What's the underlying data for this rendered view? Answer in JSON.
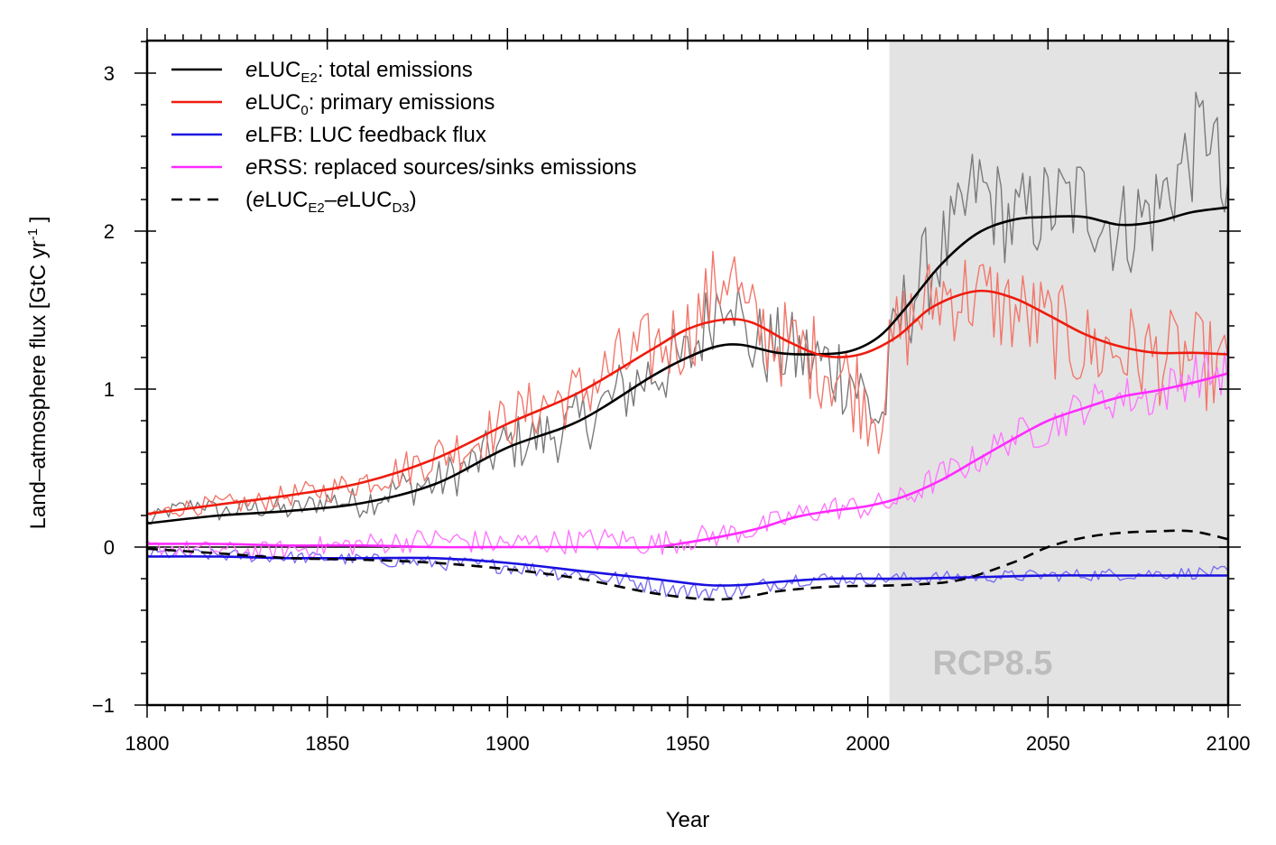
{
  "chart_data": {
    "type": "line",
    "xlabel": "Year",
    "ylabel": "Land–atmosphere flux [GtC yr",
    "ylabel_sup": "-1",
    "ylabel_end": " ]",
    "xlim": [
      1800,
      2100
    ],
    "ylim": [
      -1,
      3.2
    ],
    "x_ticks": [
      1800,
      1850,
      1900,
      1950,
      2000,
      2050,
      2100
    ],
    "x_tick_labels": [
      "1800",
      "1850",
      "1900",
      "1950",
      "2000",
      "2050",
      "2100"
    ],
    "y_ticks": [
      -1,
      0,
      1,
      2,
      3
    ],
    "y_tick_labels": [
      "−1",
      "0",
      "1",
      "2",
      "3"
    ],
    "zero_line": true,
    "shaded_region": {
      "x_start": 2006,
      "x_end": 2100,
      "label": "RCP8.5",
      "color": "#e3e3e3"
    },
    "legend_position": "top-left",
    "legend": [
      {
        "key": "eLUC_E2",
        "pre": "",
        "italic": "e",
        "main": "LUC",
        "sub": "E2",
        "tail": ": total emissions",
        "color": "#000000",
        "dash": false
      },
      {
        "key": "eLUC_0",
        "pre": "",
        "italic": "e",
        "main": "LUC",
        "sub": "0",
        "tail": ": primary emissions",
        "color": "#ee1c0e",
        "dash": false
      },
      {
        "key": "eLFB",
        "pre": "",
        "italic": "e",
        "main": "LFB: LUC feedback flux",
        "sub": "",
        "tail": "",
        "color": "#1a10e0",
        "dash": false
      },
      {
        "key": "eRSS",
        "pre": "",
        "italic": "e",
        "main": "RSS: replaced sources/sinks emissions",
        "sub": "",
        "tail": "",
        "color": "#ff2bff",
        "dash": false
      },
      {
        "key": "diff",
        "pre": "(",
        "italic": "e",
        "main": "LUC",
        "sub": "E2",
        "tail": "–",
        "italic2": "e",
        "main2": "LUC",
        "sub2": "D3",
        "tail2": ")",
        "color": "#000000",
        "dash": true
      }
    ],
    "series": [
      {
        "key": "eLUC_E2_smooth",
        "color": "#000000",
        "width": 2.6,
        "dash": false,
        "points": [
          [
            1800,
            0.15
          ],
          [
            1820,
            0.2
          ],
          [
            1840,
            0.23
          ],
          [
            1860,
            0.28
          ],
          [
            1880,
            0.4
          ],
          [
            1900,
            0.63
          ],
          [
            1920,
            0.8
          ],
          [
            1940,
            1.08
          ],
          [
            1950,
            1.2
          ],
          [
            1958,
            1.27
          ],
          [
            1965,
            1.28
          ],
          [
            1975,
            1.23
          ],
          [
            1985,
            1.22
          ],
          [
            1995,
            1.24
          ],
          [
            2003,
            1.33
          ],
          [
            2010,
            1.5
          ],
          [
            2020,
            1.78
          ],
          [
            2030,
            1.98
          ],
          [
            2040,
            2.07
          ],
          [
            2050,
            2.09
          ],
          [
            2060,
            2.09
          ],
          [
            2070,
            2.04
          ],
          [
            2080,
            2.06
          ],
          [
            2090,
            2.12
          ],
          [
            2100,
            2.15
          ]
        ]
      },
      {
        "key": "eLUC_0_smooth",
        "color": "#ee1c0e",
        "width": 2.6,
        "dash": false,
        "points": [
          [
            1800,
            0.21
          ],
          [
            1820,
            0.27
          ],
          [
            1840,
            0.33
          ],
          [
            1860,
            0.41
          ],
          [
            1880,
            0.56
          ],
          [
            1900,
            0.78
          ],
          [
            1920,
            0.98
          ],
          [
            1940,
            1.25
          ],
          [
            1950,
            1.38
          ],
          [
            1960,
            1.44
          ],
          [
            1968,
            1.42
          ],
          [
            1978,
            1.3
          ],
          [
            1988,
            1.21
          ],
          [
            1998,
            1.22
          ],
          [
            2008,
            1.33
          ],
          [
            2018,
            1.52
          ],
          [
            2030,
            1.62
          ],
          [
            2040,
            1.58
          ],
          [
            2050,
            1.47
          ],
          [
            2060,
            1.35
          ],
          [
            2070,
            1.27
          ],
          [
            2080,
            1.23
          ],
          [
            2090,
            1.23
          ],
          [
            2100,
            1.22
          ]
        ]
      },
      {
        "key": "eLFB_smooth",
        "color": "#1a10e0",
        "width": 2.6,
        "dash": false,
        "points": [
          [
            1800,
            -0.06
          ],
          [
            1820,
            -0.06
          ],
          [
            1840,
            -0.07
          ],
          [
            1860,
            -0.07
          ],
          [
            1880,
            -0.07
          ],
          [
            1900,
            -0.1
          ],
          [
            1920,
            -0.15
          ],
          [
            1940,
            -0.2
          ],
          [
            1955,
            -0.24
          ],
          [
            1965,
            -0.24
          ],
          [
            1975,
            -0.22
          ],
          [
            1990,
            -0.2
          ],
          [
            2010,
            -0.2
          ],
          [
            2030,
            -0.19
          ],
          [
            2050,
            -0.18
          ],
          [
            2070,
            -0.18
          ],
          [
            2100,
            -0.18
          ]
        ]
      },
      {
        "key": "eRSS_smooth",
        "color": "#ff2bff",
        "width": 2.6,
        "dash": false,
        "points": [
          [
            1800,
            0.02
          ],
          [
            1820,
            0.02
          ],
          [
            1840,
            0.01
          ],
          [
            1860,
            0.01
          ],
          [
            1880,
            0.0
          ],
          [
            1900,
            0.0
          ],
          [
            1920,
            0.0
          ],
          [
            1940,
            0.0
          ],
          [
            1950,
            0.03
          ],
          [
            1960,
            0.07
          ],
          [
            1970,
            0.12
          ],
          [
            1980,
            0.19
          ],
          [
            1990,
            0.23
          ],
          [
            2000,
            0.26
          ],
          [
            2010,
            0.32
          ],
          [
            2020,
            0.42
          ],
          [
            2030,
            0.55
          ],
          [
            2040,
            0.68
          ],
          [
            2050,
            0.8
          ],
          [
            2060,
            0.88
          ],
          [
            2070,
            0.95
          ],
          [
            2080,
            0.99
          ],
          [
            2090,
            1.04
          ],
          [
            2100,
            1.1
          ]
        ]
      },
      {
        "key": "diff",
        "color": "#000000",
        "width": 2.6,
        "dash": true,
        "points": [
          [
            1800,
            -0.01
          ],
          [
            1820,
            -0.04
          ],
          [
            1840,
            -0.07
          ],
          [
            1860,
            -0.08
          ],
          [
            1880,
            -0.1
          ],
          [
            1900,
            -0.14
          ],
          [
            1920,
            -0.2
          ],
          [
            1940,
            -0.29
          ],
          [
            1955,
            -0.33
          ],
          [
            1965,
            -0.32
          ],
          [
            1975,
            -0.28
          ],
          [
            1990,
            -0.25
          ],
          [
            2010,
            -0.24
          ],
          [
            2025,
            -0.21
          ],
          [
            2040,
            -0.1
          ],
          [
            2050,
            0.0
          ],
          [
            2060,
            0.06
          ],
          [
            2070,
            0.09
          ],
          [
            2080,
            0.1
          ],
          [
            2090,
            0.1
          ],
          [
            2100,
            0.05
          ]
        ]
      },
      {
        "key": "eLUC_E2_annual",
        "color": "#7a7a7a",
        "width": 1.4,
        "dash": false,
        "noisy": true,
        "points": [
          [
            1800,
            0.15
          ],
          [
            1805,
            0.22
          ],
          [
            1810,
            0.25
          ],
          [
            1815,
            0.28
          ],
          [
            1820,
            0.22
          ],
          [
            1830,
            0.25
          ],
          [
            1840,
            0.23
          ],
          [
            1850,
            0.3
          ],
          [
            1860,
            0.28
          ],
          [
            1870,
            0.38
          ],
          [
            1880,
            0.4
          ],
          [
            1890,
            0.52
          ],
          [
            1900,
            0.65
          ],
          [
            1910,
            0.7
          ],
          [
            1920,
            0.78
          ],
          [
            1930,
            0.95
          ],
          [
            1940,
            1.1
          ],
          [
            1950,
            1.18
          ],
          [
            1958,
            1.55
          ],
          [
            1962,
            1.7
          ],
          [
            1966,
            1.3
          ],
          [
            1975,
            1.25
          ],
          [
            1985,
            1.18
          ],
          [
            1995,
            1.1
          ],
          [
            2000,
            0.9
          ],
          [
            2004,
            0.8
          ],
          [
            2008,
            1.4
          ],
          [
            2015,
            1.7
          ],
          [
            2025,
            2.0
          ],
          [
            2030,
            2.3
          ],
          [
            2040,
            2.05
          ],
          [
            2050,
            2.15
          ],
          [
            2060,
            2.2
          ],
          [
            2070,
            2.0
          ],
          [
            2080,
            2.15
          ],
          [
            2090,
            2.5
          ],
          [
            2095,
            2.7
          ],
          [
            2100,
            2.0
          ]
        ],
        "amps": [
          [
            1800,
            0.05
          ],
          [
            1850,
            0.08
          ],
          [
            1900,
            0.18
          ],
          [
            1950,
            0.25
          ],
          [
            2000,
            0.3
          ],
          [
            2050,
            0.32
          ],
          [
            2100,
            0.35
          ]
        ]
      },
      {
        "key": "eLUC_0_annual",
        "color": "#f2776b",
        "width": 1.4,
        "dash": false,
        "noisy": true,
        "points": [
          [
            1800,
            0.2
          ],
          [
            1810,
            0.25
          ],
          [
            1820,
            0.27
          ],
          [
            1830,
            0.28
          ],
          [
            1840,
            0.33
          ],
          [
            1850,
            0.36
          ],
          [
            1860,
            0.42
          ],
          [
            1870,
            0.48
          ],
          [
            1880,
            0.58
          ],
          [
            1890,
            0.65
          ],
          [
            1900,
            0.8
          ],
          [
            1910,
            0.9
          ],
          [
            1920,
            0.97
          ],
          [
            1930,
            1.15
          ],
          [
            1940,
            1.25
          ],
          [
            1950,
            1.35
          ],
          [
            1958,
            1.65
          ],
          [
            1962,
            1.8
          ],
          [
            1966,
            1.45
          ],
          [
            1975,
            1.3
          ],
          [
            1985,
            1.2
          ],
          [
            1995,
            1.05
          ],
          [
            2003,
            0.85
          ],
          [
            2008,
            1.35
          ],
          [
            2020,
            1.6
          ],
          [
            2030,
            1.6
          ],
          [
            2040,
            1.5
          ],
          [
            2050,
            1.4
          ],
          [
            2060,
            1.25
          ],
          [
            2070,
            1.25
          ],
          [
            2080,
            1.2
          ],
          [
            2090,
            1.2
          ],
          [
            2100,
            1.1
          ]
        ],
        "amps": [
          [
            1800,
            0.05
          ],
          [
            1850,
            0.08
          ],
          [
            1900,
            0.18
          ],
          [
            1950,
            0.28
          ],
          [
            2000,
            0.3
          ],
          [
            2050,
            0.32
          ],
          [
            2100,
            0.3
          ]
        ]
      },
      {
        "key": "eLFB_annual",
        "color": "#7a6ff0",
        "width": 1.4,
        "dash": false,
        "noisy": true,
        "points": [
          [
            1800,
            -0.04
          ],
          [
            1850,
            -0.07
          ],
          [
            1900,
            -0.12
          ],
          [
            1930,
            -0.2
          ],
          [
            1950,
            -0.28
          ],
          [
            1965,
            -0.27
          ],
          [
            1980,
            -0.2
          ],
          [
            2000,
            -0.2
          ],
          [
            2050,
            -0.18
          ],
          [
            2100,
            -0.16
          ]
        ],
        "amps": [
          [
            1800,
            0.04
          ],
          [
            1850,
            0.04
          ],
          [
            1900,
            0.05
          ],
          [
            1950,
            0.06
          ],
          [
            2000,
            0.04
          ],
          [
            2100,
            0.04
          ]
        ]
      },
      {
        "key": "eRSS_annual",
        "color": "#ff77ff",
        "width": 1.4,
        "dash": false,
        "noisy": true,
        "points": [
          [
            1800,
            0.0
          ],
          [
            1830,
            -0.03
          ],
          [
            1860,
            0.02
          ],
          [
            1880,
            0.05
          ],
          [
            1900,
            0.02
          ],
          [
            1920,
            0.04
          ],
          [
            1930,
            0.05
          ],
          [
            1940,
            0.02
          ],
          [
            1950,
            0.05
          ],
          [
            1960,
            0.08
          ],
          [
            1970,
            0.12
          ],
          [
            1980,
            0.2
          ],
          [
            1990,
            0.25
          ],
          [
            2000,
            0.25
          ],
          [
            2010,
            0.3
          ],
          [
            2020,
            0.45
          ],
          [
            2030,
            0.55
          ],
          [
            2040,
            0.7
          ],
          [
            2050,
            0.75
          ],
          [
            2060,
            0.9
          ],
          [
            2070,
            0.95
          ],
          [
            2080,
            0.95
          ],
          [
            2090,
            1.1
          ],
          [
            2100,
            1.1
          ]
        ],
        "amps": [
          [
            1800,
            0.05
          ],
          [
            1850,
            0.07
          ],
          [
            1900,
            0.08
          ],
          [
            1950,
            0.08
          ],
          [
            2000,
            0.08
          ],
          [
            2050,
            0.12
          ],
          [
            2100,
            0.16
          ]
        ]
      }
    ]
  }
}
